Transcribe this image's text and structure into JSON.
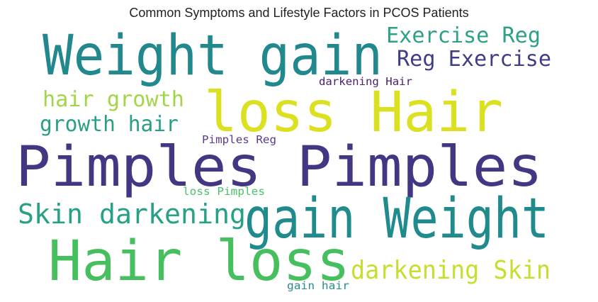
{
  "chart_data": {
    "type": "wordcloud",
    "title": "Common Symptoms and Lifestyle Factors in PCOS Patients",
    "words": [
      {
        "text": "Weight gain",
        "color": "#21888d"
      },
      {
        "text": "Exercise Reg",
        "color": "#2da086"
      },
      {
        "text": "Reg Exercise",
        "color": "#403d86"
      },
      {
        "text": "darkening Hair",
        "color": "#4b2170"
      },
      {
        "text": "hair growth",
        "color": "#a3d548"
      },
      {
        "text": "loss Hair",
        "color": "#dbe020"
      },
      {
        "text": "growth hair",
        "color": "#2a9f86"
      },
      {
        "text": "Pimples Reg",
        "color": "#5a3a8b"
      },
      {
        "text": "Pimples Pimples",
        "color": "#433784"
      },
      {
        "text": "loss Pimples",
        "color": "#4cc26b"
      },
      {
        "text": "Skin darkening",
        "color": "#26a185"
      },
      {
        "text": "gain Weight",
        "color": "#1f8b8c"
      },
      {
        "text": "Hair loss",
        "color": "#46c05e"
      },
      {
        "text": "darkening Skin",
        "color": "#c7de2e"
      },
      {
        "text": "gain hair",
        "color": "#2c8b8c"
      }
    ]
  }
}
